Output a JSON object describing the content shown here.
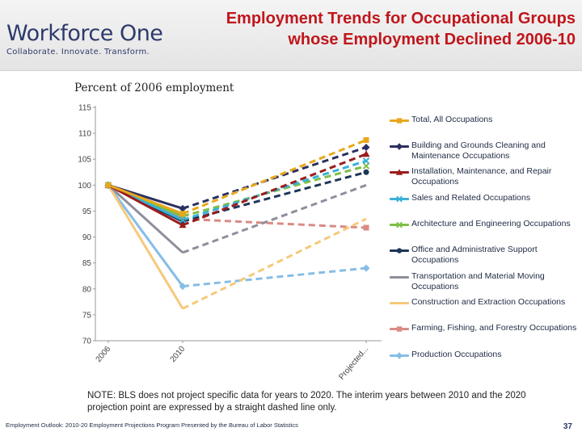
{
  "header": {
    "logo_text": "Workforce One",
    "logo_tagline": "Collaborate.  Innovate.  Transform.",
    "title_line1": "Employment Trends for Occupational Groups",
    "title_line2": "whose Employment Declined 2006-10"
  },
  "chart_data": {
    "type": "line",
    "ylabel": "Percent of 2006 employment",
    "categories": [
      "2006",
      "2010",
      "Projected..."
    ],
    "ylim": [
      70,
      115
    ],
    "yticks": [
      "70",
      "75",
      "80",
      "85",
      "90",
      "95",
      "100",
      "105",
      "110",
      "115"
    ],
    "grid": false,
    "legend_position": "right",
    "series": [
      {
        "name": "Total, All Occupations",
        "color": "#e8a81c",
        "marker": "square",
        "values": [
          100,
          94.5,
          108.7
        ]
      },
      {
        "name": "Building and Grounds Cleaning and Maintenance Occupations",
        "color": "#2b3060",
        "marker": "diamond",
        "values": [
          100,
          95.5,
          107.3
        ]
      },
      {
        "name": "Installation, Maintenance, and Repair Occupations",
        "color": "#9b1c1c",
        "marker": "triangle",
        "values": [
          100,
          92.3,
          106.0
        ]
      },
      {
        "name": "Sales and Related Occupations",
        "color": "#3ab0d8",
        "marker": "x",
        "values": [
          100,
          93.3,
          104.7
        ]
      },
      {
        "name": "Architecture and Engineering Occupations",
        "color": "#7fbf45",
        "marker": "x",
        "values": [
          100,
          94.0,
          103.7
        ]
      },
      {
        "name": "Office and Administrative Support Occupations",
        "color": "#1d3557",
        "marker": "circle",
        "values": [
          100,
          93.0,
          102.5
        ]
      },
      {
        "name": "Transportation and Material Moving Occupations",
        "color": "#8e8e9c",
        "marker": "none",
        "values": [
          100,
          87.0,
          100.0
        ]
      },
      {
        "name": "Construction and Extraction Occupations",
        "color": "#f6c97a",
        "marker": "none",
        "values": [
          100,
          76.2,
          93.5
        ]
      },
      {
        "name": "Farming, Fishing, and Forestry Occupations",
        "color": "#d98b84",
        "marker": "square",
        "values": [
          100,
          93.5,
          91.8
        ]
      },
      {
        "name": "Production Occupations",
        "color": "#86bde6",
        "marker": "diamond",
        "values": [
          100,
          80.5,
          84.0
        ]
      }
    ]
  },
  "note": "NOTE:  BLS does not project specific data for years to 2020.  The interim years between 2010 and the 2020 projection point are expressed by a straight dashed line only.",
  "footer": "Employment Outlook: 2010-20 Employment Projections Program Presented by the Bureau of Labor Statistics",
  "page_number": "37"
}
